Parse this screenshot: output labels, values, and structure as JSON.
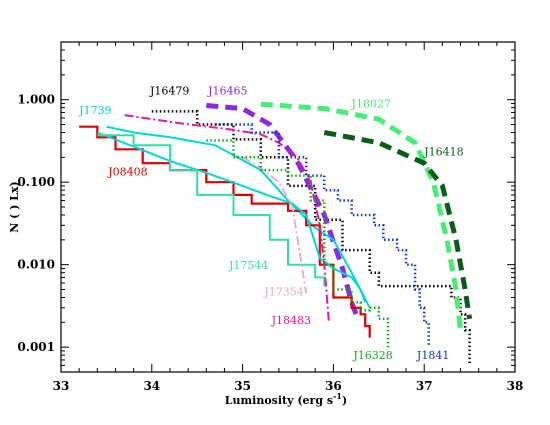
{
  "chart_data": {
    "type": "line",
    "title": "",
    "xlabel": "Luminosity (erg s",
    "xlabel_sup": "-1",
    "xlabel_close": ")",
    "ylabel": "N (  ) Lx)",
    "xlim": [
      33,
      38
    ],
    "ylim": [
      0.0005,
      5
    ],
    "y_scale": "log",
    "grid": false,
    "x_ticks": [
      {
        "v": 33,
        "label": "33"
      },
      {
        "v": 34,
        "label": "34"
      },
      {
        "v": 35,
        "label": "35"
      },
      {
        "v": 36,
        "label": "36"
      },
      {
        "v": 37,
        "label": "37"
      },
      {
        "v": 38,
        "label": "38"
      }
    ],
    "y_ticks": [
      {
        "v": 0.001,
        "label": "0.001"
      },
      {
        "v": 0.01,
        "label": "0.010"
      },
      {
        "v": 0.1,
        "label": "0.100"
      },
      {
        "v": 1,
        "label": "1.000"
      }
    ],
    "series": [
      {
        "name": "J16479",
        "color": "#000000",
        "style": "dotted",
        "width": 2.5,
        "step": true,
        "label": {
          "x": 33.98,
          "y": 1.15,
          "color": "#000000"
        },
        "points": [
          [
            34.0,
            0.72
          ],
          [
            34.5,
            0.5
          ],
          [
            34.9,
            0.33
          ],
          [
            35.2,
            0.2
          ],
          [
            35.5,
            0.09
          ],
          [
            35.8,
            0.035
          ],
          [
            36.1,
            0.015
          ],
          [
            36.4,
            0.008
          ],
          [
            36.5,
            0.0055
          ],
          [
            37.2,
            0.0055
          ],
          [
            37.3,
            0.004
          ],
          [
            37.4,
            0.0025
          ],
          [
            37.45,
            0.0016
          ],
          [
            37.5,
            0.0006
          ]
        ]
      },
      {
        "name": "J16465",
        "color": "#8a2be2",
        "style": "dashed",
        "width": 5,
        "step": false,
        "label": {
          "x": 34.62,
          "y": 1.15,
          "color": "#8a2be2"
        },
        "points": [
          [
            34.6,
            0.85
          ],
          [
            35.0,
            0.78
          ],
          [
            35.3,
            0.5
          ],
          [
            35.6,
            0.18
          ],
          [
            35.9,
            0.04
          ],
          [
            36.1,
            0.009
          ],
          [
            36.2,
            0.0035
          ],
          [
            36.25,
            0.0025
          ]
        ]
      },
      {
        "name": "J18027",
        "color": "#44ee77",
        "style": "dashed",
        "width": 5,
        "step": false,
        "label": {
          "x": 36.2,
          "y": 0.8,
          "color": "#44ee77"
        },
        "points": [
          [
            35.2,
            0.88
          ],
          [
            35.9,
            0.78
          ],
          [
            36.5,
            0.58
          ],
          [
            36.9,
            0.3
          ],
          [
            37.1,
            0.1
          ],
          [
            37.25,
            0.02
          ],
          [
            37.35,
            0.005
          ],
          [
            37.4,
            0.0016
          ]
        ]
      },
      {
        "name": "J16418",
        "color": "#0a5c1a",
        "style": "dashed",
        "width": 5,
        "step": false,
        "label": {
          "x": 37.0,
          "y": 0.21,
          "color": "#0a5c1a"
        },
        "points": [
          [
            35.9,
            0.4
          ],
          [
            36.5,
            0.3
          ],
          [
            37.0,
            0.17
          ],
          [
            37.2,
            0.09
          ],
          [
            37.35,
            0.02
          ],
          [
            37.45,
            0.005
          ],
          [
            37.5,
            0.0022
          ]
        ]
      },
      {
        "name": "J1739",
        "color": "#00d8d8",
        "style": "solid",
        "width": 2,
        "step": false,
        "label": {
          "x": 33.2,
          "y": 0.67,
          "color": "#00d8d8"
        },
        "points": [
          [
            33.5,
            0.47
          ],
          [
            33.8,
            0.4
          ],
          [
            34.2,
            0.35
          ],
          [
            34.7,
            0.28
          ],
          [
            35.2,
            0.14
          ],
          [
            35.5,
            0.06
          ],
          [
            35.8,
            0.028
          ],
          [
            36.0,
            0.02
          ],
          [
            36.2,
            0.008
          ],
          [
            36.4,
            0.003
          ]
        ]
      },
      {
        "name": "J08408",
        "color": "#dd0000",
        "style": "solid",
        "width": 2.2,
        "step": true,
        "label": {
          "x": 33.52,
          "y": 0.12,
          "color": "#dd0000"
        },
        "points": [
          [
            33.2,
            0.47
          ],
          [
            33.4,
            0.35
          ],
          [
            33.6,
            0.25
          ],
          [
            33.9,
            0.17
          ],
          [
            34.2,
            0.14
          ],
          [
            34.6,
            0.1
          ],
          [
            34.9,
            0.07
          ],
          [
            35.1,
            0.055
          ],
          [
            35.5,
            0.045
          ],
          [
            35.7,
            0.03
          ],
          [
            35.85,
            0.01
          ],
          [
            36.0,
            0.004
          ],
          [
            36.2,
            0.003
          ],
          [
            36.3,
            0.0025
          ],
          [
            36.35,
            0.0018
          ],
          [
            36.4,
            0.0013
          ]
        ]
      },
      {
        "name": "",
        "color": "#00d8d8",
        "style": "solid",
        "width": 2,
        "step": false,
        "label": null,
        "points": [
          [
            33.4,
            0.4
          ],
          [
            33.8,
            0.27
          ],
          [
            34.2,
            0.18
          ],
          [
            34.6,
            0.13
          ],
          [
            35.0,
            0.09
          ],
          [
            35.3,
            0.068
          ],
          [
            35.55,
            0.055
          ],
          [
            35.7,
            0.04
          ],
          [
            35.85,
            0.012
          ],
          [
            36.0,
            0.009
          ],
          [
            36.2,
            0.007
          ],
          [
            36.3,
            0.005
          ],
          [
            36.35,
            0.0035
          ]
        ]
      },
      {
        "name": "J17544",
        "color": "#33ddaa",
        "style": "solid",
        "width": 2,
        "step": true,
        "label": {
          "x": 34.85,
          "y": 0.0088,
          "color": "#33ddaa"
        },
        "points": [
          [
            33.4,
            0.37
          ],
          [
            33.8,
            0.28
          ],
          [
            34.2,
            0.14
          ],
          [
            34.5,
            0.07
          ],
          [
            34.9,
            0.04
          ],
          [
            35.3,
            0.02
          ],
          [
            35.5,
            0.01
          ],
          [
            35.8,
            0.007
          ],
          [
            35.9,
            0.0055
          ]
        ]
      },
      {
        "name": "J17354",
        "color": "#e8a8c0",
        "style": "dashdot",
        "width": 1.8,
        "step": false,
        "label": {
          "x": 35.24,
          "y": 0.0042,
          "color": "#e8a8c0"
        },
        "points": [
          [
            35.0,
            0.2
          ],
          [
            35.2,
            0.15
          ],
          [
            35.4,
            0.1
          ],
          [
            35.55,
            0.05
          ],
          [
            35.65,
            0.01
          ],
          [
            35.7,
            0.0045
          ]
        ]
      },
      {
        "name": "J18483",
        "color": "#e6189b",
        "style": "dashdot",
        "width": 2,
        "step": false,
        "label": {
          "x": 35.32,
          "y": 0.0019,
          "color": "#e6189b"
        },
        "points": [
          [
            33.7,
            0.65
          ],
          [
            34.3,
            0.52
          ],
          [
            34.9,
            0.43
          ],
          [
            35.2,
            0.38
          ],
          [
            35.4,
            0.3
          ],
          [
            35.6,
            0.2
          ],
          [
            35.75,
            0.1
          ],
          [
            35.85,
            0.03
          ],
          [
            35.9,
            0.01
          ],
          [
            35.95,
            0.002
          ]
        ]
      },
      {
        "name": "J16328",
        "color": "#11aa11",
        "style": "dotted",
        "width": 2.5,
        "step": true,
        "label": {
          "x": 36.22,
          "y": 0.00072,
          "color": "#11aa11"
        },
        "points": [
          [
            34.6,
            0.32
          ],
          [
            34.9,
            0.2
          ],
          [
            35.2,
            0.14
          ],
          [
            35.5,
            0.12
          ],
          [
            35.75,
            0.06
          ],
          [
            35.9,
            0.01
          ],
          [
            36.0,
            0.005
          ],
          [
            36.2,
            0.0035
          ],
          [
            36.3,
            0.0028
          ],
          [
            36.4,
            0.003
          ],
          [
            36.5,
            0.0022
          ],
          [
            36.6,
            0.001
          ]
        ]
      },
      {
        "name": "J1841",
        "color": "#1133cc",
        "style": "dotted",
        "width": 2.5,
        "step": true,
        "label": {
          "x": 36.92,
          "y": 0.00072,
          "color": "#1133cc"
        },
        "points": [
          [
            34.7,
            0.5
          ],
          [
            35.1,
            0.4
          ],
          [
            35.4,
            0.2
          ],
          [
            35.7,
            0.12
          ],
          [
            35.9,
            0.08
          ],
          [
            36.05,
            0.06
          ],
          [
            36.2,
            0.04
          ],
          [
            36.45,
            0.03
          ],
          [
            36.55,
            0.02
          ],
          [
            36.7,
            0.015
          ],
          [
            36.8,
            0.01
          ],
          [
            36.9,
            0.005
          ],
          [
            36.95,
            0.003
          ],
          [
            37.0,
            0.002
          ],
          [
            37.05,
            0.001
          ]
        ]
      }
    ]
  }
}
